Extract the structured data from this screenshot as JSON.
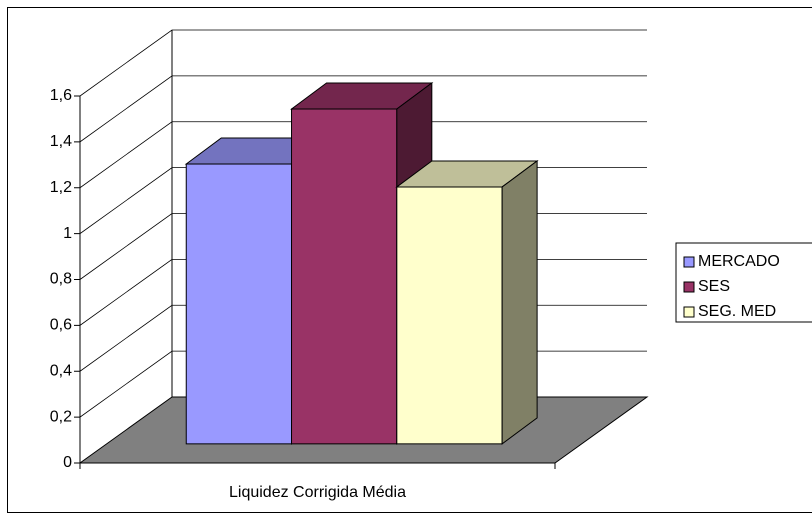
{
  "chart_data": {
    "type": "bar3d",
    "categories": [
      "Liquidez Corrigida Média"
    ],
    "series": [
      {
        "name": "MERCADO",
        "color": "#9999ff",
        "values": [
          1.22
        ]
      },
      {
        "name": "SES",
        "color": "#993366",
        "values": [
          1.46
        ]
      },
      {
        "name": "SEG. MED",
        "color": "#ffffcc",
        "values": [
          1.12
        ]
      }
    ],
    "ylim": [
      0,
      1.6
    ],
    "yticks": [
      0,
      {
        "value": 0.2,
        "label": "0,2"
      },
      {
        "value": 0.4,
        "label": "0,4"
      },
      {
        "value": 0.6,
        "label": "0,6"
      },
      {
        "value": 0.8,
        "label": "0,8"
      },
      1,
      {
        "value": 1.2,
        "label": "1,2"
      },
      {
        "value": 1.4,
        "label": "1,4"
      },
      {
        "value": 1.6,
        "label": "1,6"
      }
    ],
    "grid": true,
    "legend": "right"
  }
}
